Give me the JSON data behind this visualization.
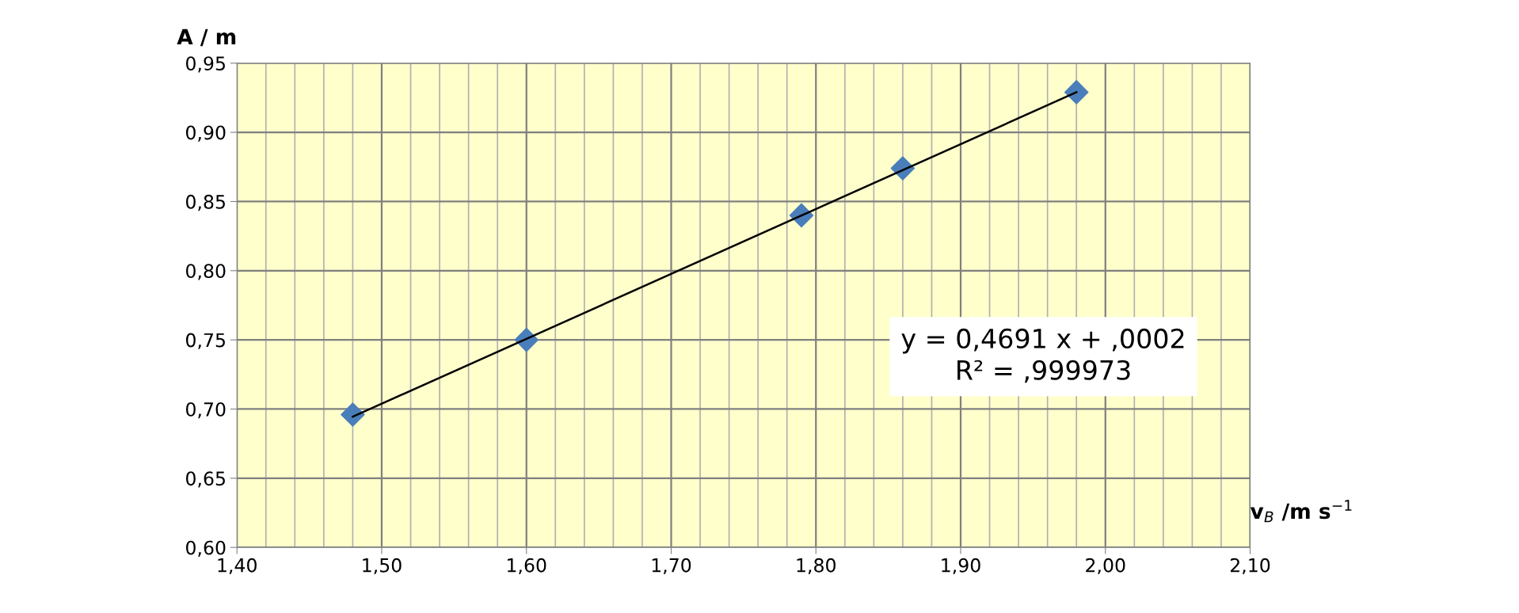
{
  "chart_data": {
    "type": "scatter",
    "xlabel": "v$_{B}$ /m s$^{−1}$",
    "ylabel": "A / m",
    "x": [
      1.48,
      1.6,
      1.79,
      1.86,
      1.98
    ],
    "series": [
      {
        "color": "#4a7ebb",
        "values": [
          0.696,
          0.75,
          0.84,
          0.874,
          0.929
        ],
        "marker": "diamond"
      },
      {
        "type": "line",
        "color": "#000000",
        "x": [
          1.48,
          1.98
        ],
        "values": [
          0.6945,
          0.929
        ],
        "line_style": "solid"
      }
    ],
    "annotations": [
      "y = 0,4691 x + ,0002\nR² = ,999973"
    ],
    "xlim": [
      1.4,
      2.1
    ],
    "ylim": [
      0.6,
      0.95
    ],
    "xticks": [
      {
        "value": 1.4,
        "label": "1,40"
      },
      {
        "value": 1.5,
        "label": "1,50"
      },
      {
        "value": 1.6,
        "label": "1,60"
      },
      {
        "value": 1.7,
        "label": "1,70"
      },
      {
        "value": 1.8,
        "label": "1,80"
      },
      {
        "value": 1.9,
        "label": "1,90"
      },
      {
        "value": 2.0,
        "label": "2,00"
      },
      {
        "value": 2.1,
        "label": "2,10"
      }
    ],
    "yticks": [
      {
        "value": 0.6,
        "label": "0,60"
      },
      {
        "value": 0.65,
        "label": "0,65"
      },
      {
        "value": 0.7,
        "label": "0,70"
      },
      {
        "value": 0.75,
        "label": "0,75"
      },
      {
        "value": 0.8,
        "label": "0,80"
      },
      {
        "value": 0.85,
        "label": "0,85"
      },
      {
        "value": 0.9,
        "label": "0,90"
      },
      {
        "value": 0.95,
        "label": "0,95"
      }
    ],
    "grid": true
  }
}
